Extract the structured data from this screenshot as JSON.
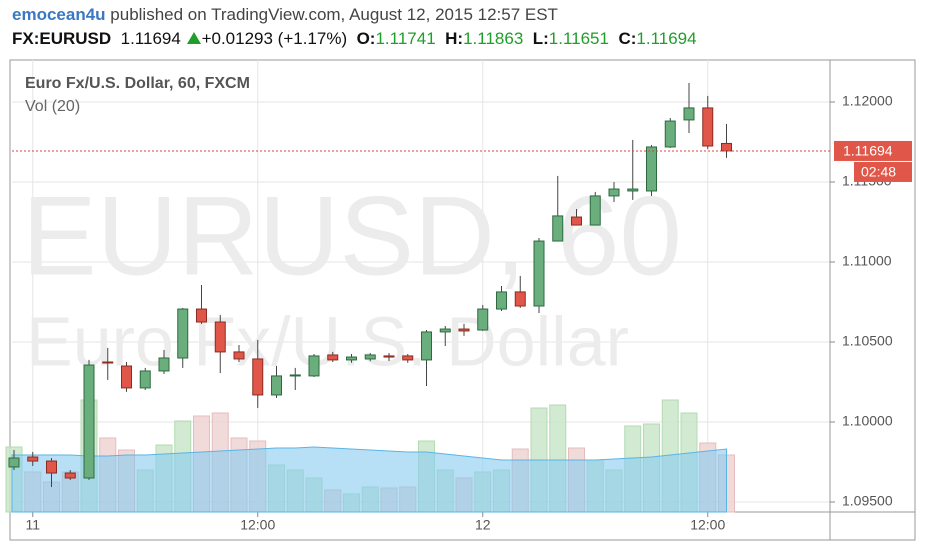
{
  "header": {
    "author": "emocean4u",
    "published": "published on TradingView.com, August 12, 2015 12:57 EST",
    "symbol": "FX:EURUSD",
    "change": "+0.01293 (+1.17%)",
    "open_label": "O:",
    "high_label": "H:",
    "low_label": "L:",
    "close_label": "C:"
  },
  "chart_data": {
    "type": "candlestick",
    "title": "Euro Fx/U.S. Dollar, 60, FXCM",
    "watermark": [
      "EURUSD, 60",
      "Euro Fx/U.S. Dollar"
    ],
    "countdown": "02:48",
    "categories": [
      null,
      "11",
      null,
      null,
      null,
      null,
      null,
      null,
      null,
      null,
      null,
      null,
      null,
      "12:00",
      null,
      null,
      null,
      null,
      null,
      null,
      null,
      null,
      null,
      null,
      null,
      "12",
      null,
      null,
      null,
      null,
      null,
      null,
      null,
      null,
      null,
      null,
      null,
      "12:00",
      null
    ],
    "open": [
      1.09719,
      1.09781,
      1.09756,
      1.09681,
      1.0965,
      1.10375,
      1.1035,
      1.10213,
      1.10319,
      1.104,
      1.10706,
      1.10625,
      1.10438,
      1.10394,
      1.10169,
      1.10288,
      1.10288,
      1.10419,
      1.10388,
      1.10394,
      1.10413,
      1.10413,
      1.10388,
      1.10563,
      1.10581,
      1.10575,
      1.10706,
      1.10813,
      1.10725,
      1.11131,
      1.11281,
      1.11231,
      1.11413,
      1.11444,
      1.11444,
      1.11719,
      1.11888,
      1.11963,
      1.11741
    ],
    "high": [
      1.09825,
      1.09813,
      1.09775,
      1.097,
      1.10388,
      1.10463,
      1.10375,
      1.10338,
      1.1045,
      1.10713,
      1.10856,
      1.10669,
      1.10481,
      1.10513,
      1.1035,
      1.10338,
      1.10425,
      1.10438,
      1.10425,
      1.10431,
      1.10431,
      1.10425,
      1.10575,
      1.106,
      1.10613,
      1.10731,
      1.1085,
      1.10913,
      1.1115,
      1.11538,
      1.11331,
      1.11438,
      1.115,
      1.11763,
      1.11731,
      1.119,
      1.12119,
      1.12038,
      1.11863
    ],
    "low": [
      1.097,
      1.09725,
      1.09594,
      1.09638,
      1.09638,
      1.10263,
      1.10188,
      1.102,
      1.103,
      1.10338,
      1.10613,
      1.10306,
      1.10375,
      1.10088,
      1.1015,
      1.102,
      1.10281,
      1.10375,
      1.1037,
      1.1038,
      1.10381,
      1.1037,
      1.10225,
      1.10475,
      1.10538,
      1.10569,
      1.10694,
      1.10713,
      1.10681,
      1.11131,
      1.11231,
      1.11231,
      1.11375,
      1.11388,
      1.11413,
      1.11713,
      1.11806,
      1.11706,
      1.11651
    ],
    "close": [
      1.09775,
      1.09756,
      1.09681,
      1.0965,
      1.10356,
      1.10369,
      1.10213,
      1.10319,
      1.104,
      1.10706,
      1.10625,
      1.10438,
      1.10394,
      1.10169,
      1.10288,
      1.10294,
      1.10413,
      1.10388,
      1.10406,
      1.10419,
      1.10406,
      1.10388,
      1.10563,
      1.10581,
      1.10569,
      1.10706,
      1.10813,
      1.10725,
      1.11131,
      1.11288,
      1.11231,
      1.11413,
      1.11456,
      1.11456,
      1.11719,
      1.11881,
      1.11963,
      1.11725,
      1.11694
    ],
    "up_color": "#6aae7e",
    "up_border": "#2d6a40",
    "down_color": "#e0574a",
    "down_border": "#8c2b21",
    "ylim": [
      1.094375,
      1.122625
    ],
    "yticks": [
      {
        "value": 1.095,
        "label": "1.09500"
      },
      {
        "value": 1.1,
        "label": "1.10000"
      },
      {
        "value": 1.105,
        "label": "1.10500"
      },
      {
        "value": 1.11,
        "label": "1.11000"
      },
      {
        "value": 1.115,
        "label": "1.11500"
      },
      {
        "value": 1.12,
        "label": "1.12000"
      }
    ],
    "grid": true,
    "last_price_line": true,
    "volume": {
      "name": "Vol (20)",
      "ylim": [
        0,
        452
      ],
      "up_color": "#c9e6c9",
      "down_color": "#efd3d3",
      "ma_color": "#87cbf0",
      "values": [
        65,
        40,
        30,
        40,
        112,
        74,
        62,
        42,
        67,
        91,
        96,
        99,
        74,
        71,
        47,
        42,
        34,
        22,
        18,
        25,
        24,
        25,
        71,
        42,
        34,
        40,
        42,
        63,
        104,
        107,
        64,
        52,
        42,
        86,
        88,
        112,
        99,
        69,
        57
      ],
      "ma": [
        57,
        57,
        57,
        57,
        56,
        56,
        57,
        57,
        58,
        59,
        60,
        61,
        62,
        63,
        64,
        64,
        65,
        64,
        63,
        62,
        61,
        60,
        60,
        58,
        56,
        54,
        52,
        52,
        52,
        52,
        52,
        52,
        53,
        54,
        55,
        57,
        59,
        61,
        63
      ]
    }
  }
}
